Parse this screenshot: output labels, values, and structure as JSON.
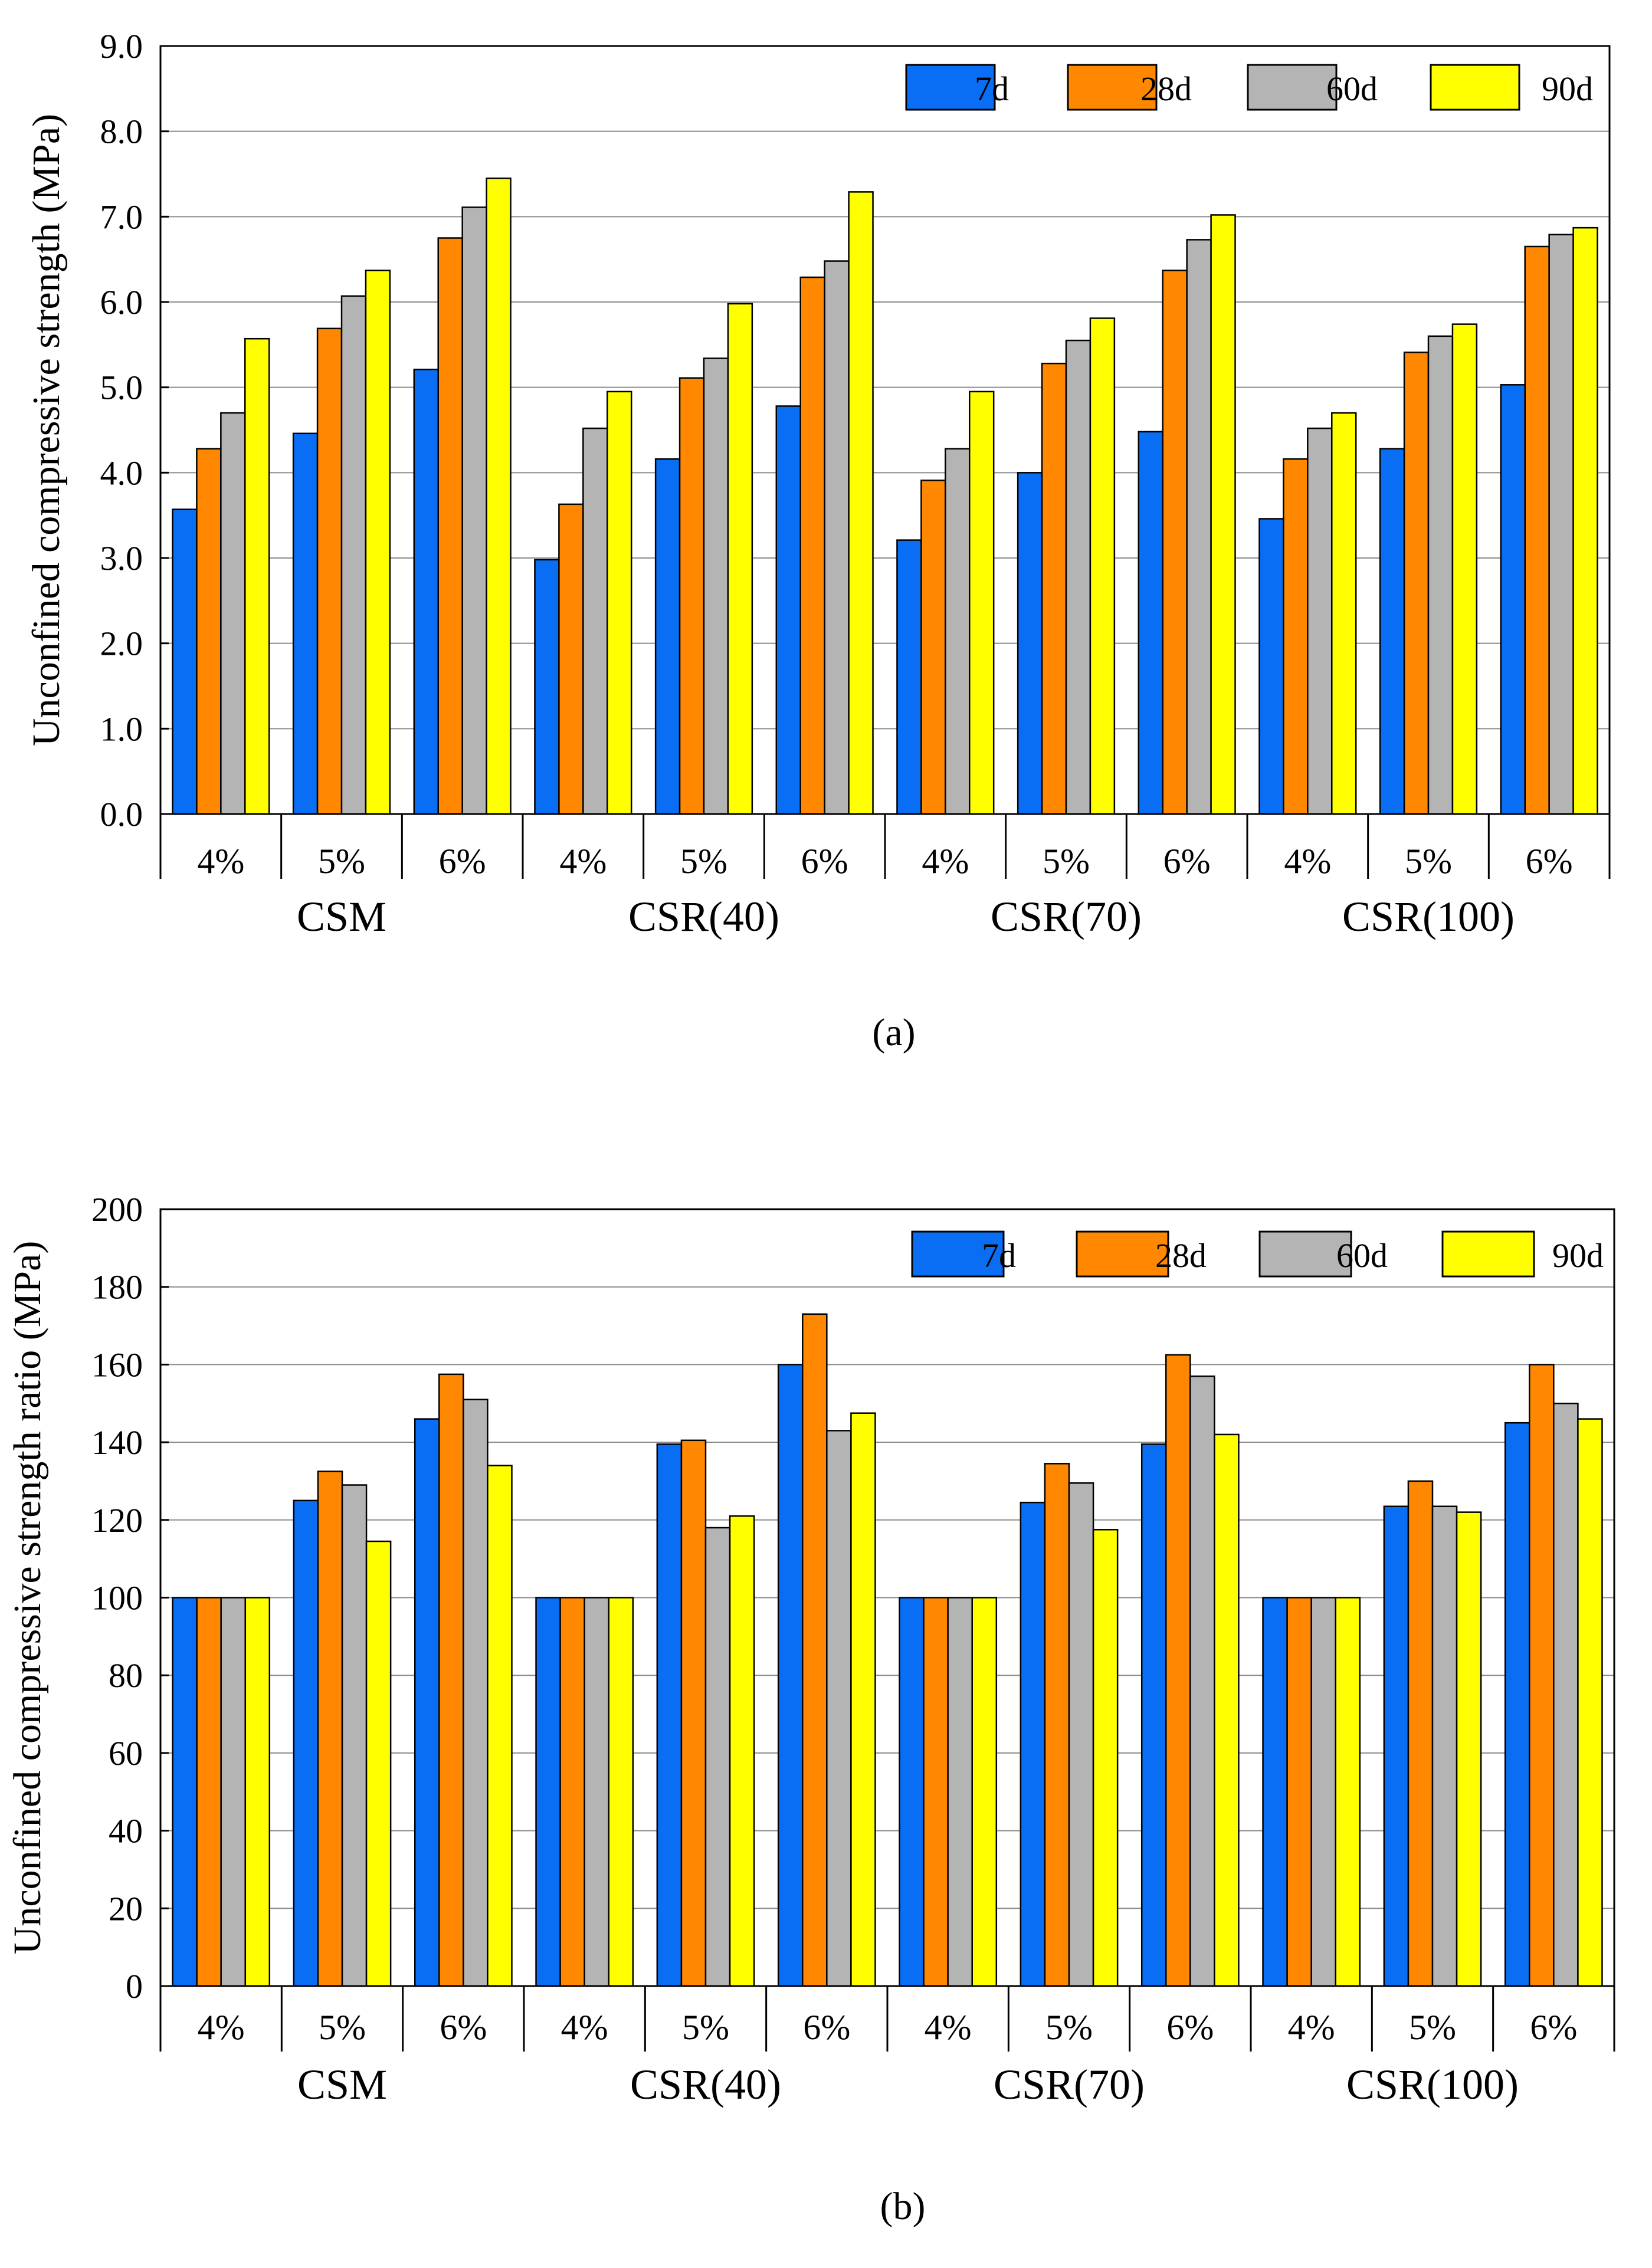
{
  "series_names": [
    "7d",
    "28d",
    "60d",
    "90d"
  ],
  "series_colors": [
    "#0a6ef5",
    "#ff8800",
    "#b4b4b4",
    "#ffff00"
  ],
  "chart_data": [
    {
      "type": "bar",
      "caption": "(a)",
      "ylabel": "Unconfined compressive strength (MPa)",
      "ylim": [
        0,
        9
      ],
      "ytick_step": 1,
      "yticks": [
        "0.0",
        "1.0",
        "2.0",
        "3.0",
        "4.0",
        "5.0",
        "6.0",
        "7.0",
        "8.0",
        "9.0"
      ],
      "grid": true,
      "legend_position": "top-right",
      "groups": [
        "CSM",
        "CSR(40)",
        "CSR(70)",
        "CSR(100)"
      ],
      "categories": [
        "4%",
        "5%",
        "6%",
        "4%",
        "5%",
        "6%",
        "4%",
        "5%",
        "6%",
        "4%",
        "5%",
        "6%"
      ],
      "series": [
        {
          "name": "7d",
          "values": [
            3.57,
            4.46,
            5.21,
            2.98,
            4.16,
            4.78,
            3.21,
            4.0,
            4.48,
            3.46,
            4.28,
            5.03
          ]
        },
        {
          "name": "28d",
          "values": [
            4.28,
            5.69,
            6.75,
            3.63,
            5.11,
            6.29,
            3.91,
            5.28,
            6.37,
            4.16,
            5.41,
            6.65
          ]
        },
        {
          "name": "60d",
          "values": [
            4.7,
            6.07,
            7.11,
            4.52,
            5.34,
            6.48,
            4.28,
            5.55,
            6.73,
            4.52,
            5.6,
            6.79
          ]
        },
        {
          "name": "90d",
          "values": [
            5.57,
            6.37,
            7.45,
            4.95,
            5.98,
            7.29,
            4.95,
            5.81,
            7.02,
            4.7,
            5.74,
            6.87
          ]
        }
      ]
    },
    {
      "type": "bar",
      "caption": "(b)",
      "ylabel": "Unconfined compressive strength ratio (MPa)",
      "ylim": [
        0,
        200
      ],
      "ytick_step": 20,
      "yticks": [
        "0",
        "20",
        "40",
        "60",
        "80",
        "100",
        "120",
        "140",
        "160",
        "180",
        "200"
      ],
      "grid": true,
      "legend_position": "top-right",
      "groups": [
        "CSM",
        "CSR(40)",
        "CSR(70)",
        "CSR(100)"
      ],
      "categories": [
        "4%",
        "5%",
        "6%",
        "4%",
        "5%",
        "6%",
        "4%",
        "5%",
        "6%",
        "4%",
        "5%",
        "6%"
      ],
      "series": [
        {
          "name": "7d",
          "values": [
            100,
            125,
            146,
            100,
            139.5,
            160,
            100,
            124.5,
            139.5,
            100,
            123.5,
            145
          ]
        },
        {
          "name": "28d",
          "values": [
            100,
            132.5,
            157.5,
            100,
            140.5,
            173,
            100,
            134.5,
            162.5,
            100,
            130,
            160
          ]
        },
        {
          "name": "60d",
          "values": [
            100,
            129,
            151,
            100,
            118,
            143,
            100,
            129.5,
            157,
            100,
            123.5,
            150
          ]
        },
        {
          "name": "90d",
          "values": [
            100,
            114.5,
            134,
            100,
            121,
            147.5,
            100,
            117.5,
            142,
            100,
            122,
            146
          ]
        }
      ]
    }
  ]
}
